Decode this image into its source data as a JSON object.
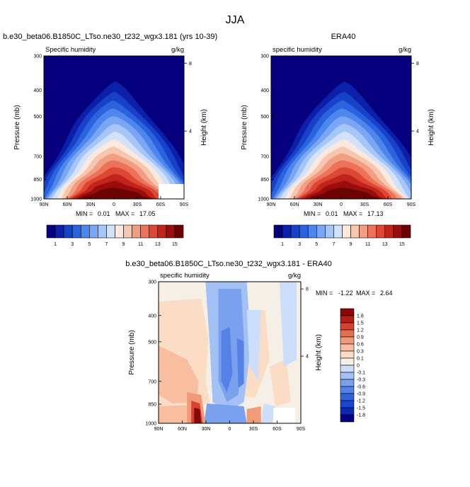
{
  "figure_title": "JJA",
  "colors": {
    "model_obs_scale": [
      "#07007e",
      "#0b1fa8",
      "#1742c8",
      "#2a63dd",
      "#4d86ec",
      "#7aa7f4",
      "#a6c6f8",
      "#d2e2fa",
      "#fbe9de",
      "#f7c6ae",
      "#f29e82",
      "#ec7359",
      "#dd4734",
      "#c2241b",
      "#9a0d0d",
      "#6b0303"
    ],
    "diff_scale": [
      "#020080",
      "#0a28b8",
      "#1b45d1",
      "#3163dc",
      "#5582e6",
      "#7aa0ee",
      "#a3c1f5",
      "#ccdef9",
      "#f6efe6",
      "#fbdcc4",
      "#f7bea0",
      "#f09a79",
      "#e46f52",
      "#d44330",
      "#b51d17",
      "#870808"
    ]
  },
  "chart_data": [
    {
      "type": "heatmap",
      "title": "b.e30_beta06.B1850C_LTso.ne30_t232_wgx3.181 (yrs 10-39)",
      "left_label": "Specific humidity",
      "right_label": "g/kg",
      "ylabel": "Pressure (mb)",
      "ylabel_right": "Height (km)",
      "x_ticks": [
        "90N",
        "60N",
        "30N",
        "0",
        "30S",
        "60S",
        "90S"
      ],
      "y_ticks": [
        "300",
        "400",
        "500",
        "700",
        "850",
        "1000"
      ],
      "y_right_ticks": [
        "8",
        "4"
      ],
      "min_label": "MIN =",
      "min": "0.01",
      "max_label": "MAX =",
      "max": "17.05",
      "colorbar_labels": [
        "1",
        "3",
        "5",
        "7",
        "9",
        "11",
        "13",
        "15"
      ]
    },
    {
      "type": "heatmap",
      "title": "ERA40",
      "left_label": "specific humidity",
      "right_label": "g/kg",
      "ylabel": "Pressure (mb)",
      "ylabel_right": "Height (km)",
      "x_ticks": [
        "90N",
        "60N",
        "30N",
        "0",
        "30S",
        "60S",
        "90S"
      ],
      "y_ticks": [
        "300",
        "400",
        "500",
        "700",
        "850",
        "1000"
      ],
      "y_right_ticks": [
        "8",
        "4"
      ],
      "min_label": "MIN =",
      "min": "0.01",
      "max_label": "MAX =",
      "max": "17.13",
      "colorbar_labels": [
        "1",
        "3",
        "5",
        "7",
        "9",
        "11",
        "13",
        "15"
      ]
    },
    {
      "type": "heatmap",
      "title": "b.e30_beta06.B1850C_LTso.ne30_t232_wgx3.181 - ERA40",
      "left_label": "specific humidity",
      "right_label": "g/kg",
      "ylabel": "Pressure (mb)",
      "ylabel_right": "Height (km)",
      "x_ticks": [
        "90N",
        "60N",
        "30N",
        "0",
        "30S",
        "60S",
        "90S"
      ],
      "y_ticks": [
        "300",
        "400",
        "500",
        "700",
        "850",
        "1000"
      ],
      "y_right_ticks": [
        "8",
        "4"
      ],
      "min_label": "MIN =",
      "min": "-1.22",
      "max_label": "MAX =",
      "max": "2.64",
      "colorbar_labels": [
        "1.8",
        "1.5",
        "1.2",
        "0.9",
        "0.6",
        "0.3",
        "0.1",
        "0",
        "-0.1",
        "-0.3",
        "-0.6",
        "-0.9",
        "-1.2",
        "-1.5",
        "-1.8"
      ]
    }
  ]
}
